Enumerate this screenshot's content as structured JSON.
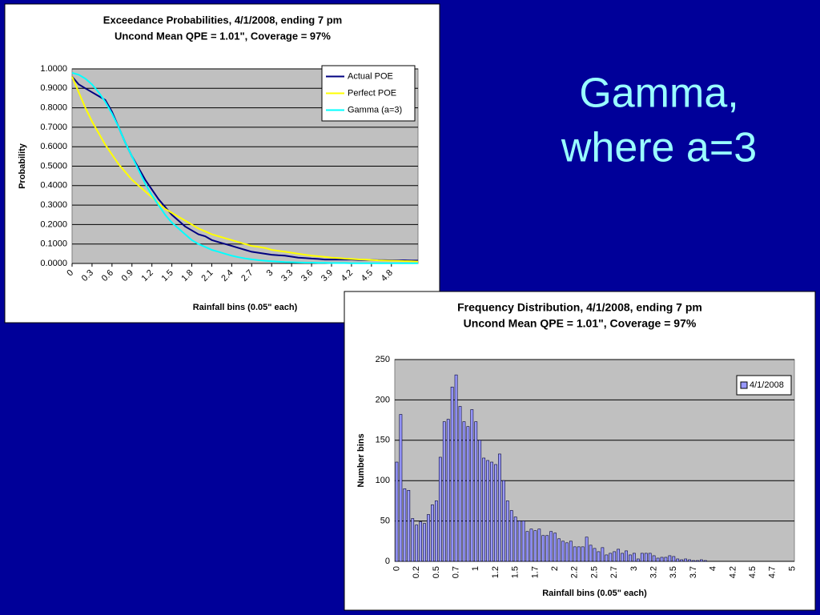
{
  "slide": {
    "title_lines": [
      "Gamma,",
      "where a=3"
    ]
  },
  "chart_data": [
    {
      "type": "line",
      "title": [
        "Exceedance Probabilities, 4/1/2008, ending 7 pm",
        "Uncond Mean QPE = 1.01\", Coverage = 97%"
      ],
      "x_label": "Rainfall bins (0.05\" each)",
      "y_label": "Probability",
      "x": [
        0,
        0.1,
        0.2,
        0.3,
        0.4,
        0.5,
        0.6,
        0.7,
        0.8,
        0.9,
        1.0,
        1.1,
        1.2,
        1.3,
        1.4,
        1.5,
        1.6,
        1.7,
        1.8,
        1.9,
        2.0,
        2.1,
        2.2,
        2.3,
        2.4,
        2.5,
        2.6,
        2.7,
        2.8,
        2.9,
        3.0,
        3.1,
        3.2,
        3.3,
        3.4,
        3.5,
        3.6,
        3.7,
        3.8,
        3.9,
        4.0,
        4.1,
        4.2,
        4.3,
        4.4,
        4.5,
        4.6,
        4.7,
        4.8,
        4.9,
        5.0,
        5.1,
        5.2
      ],
      "xlim": [
        0,
        5.2
      ],
      "xticks": [
        0,
        0.3,
        0.6,
        0.9,
        1.2,
        1.5,
        1.8,
        2.1,
        2.4,
        2.7,
        3,
        3.3,
        3.6,
        3.9,
        4.2,
        4.5,
        4.8
      ],
      "ylim": [
        0,
        1
      ],
      "yticks": [
        {
          "value": 0,
          "label": "0.0000"
        },
        {
          "value": 0.1,
          "label": "0.1000"
        },
        {
          "value": 0.2,
          "label": "0.2000"
        },
        {
          "value": 0.3,
          "label": "0.3000"
        },
        {
          "value": 0.4,
          "label": "0.4000"
        },
        {
          "value": 0.5,
          "label": "0.5000"
        },
        {
          "value": 0.6,
          "label": "0.6000"
        },
        {
          "value": 0.7,
          "label": "0.7000"
        },
        {
          "value": 0.8,
          "label": "0.8000"
        },
        {
          "value": 0.9,
          "label": "0.9000"
        },
        {
          "value": 1,
          "label": "1.0000"
        }
      ],
      "grid": true,
      "legend": "top-right",
      "series": [
        {
          "name": "Actual POE",
          "color": "#000080",
          "values": [
            0.96,
            0.92,
            0.9,
            0.88,
            0.86,
            0.84,
            0.78,
            0.7,
            0.62,
            0.55,
            0.49,
            0.43,
            0.38,
            0.33,
            0.29,
            0.25,
            0.22,
            0.19,
            0.17,
            0.15,
            0.14,
            0.12,
            0.11,
            0.1,
            0.09,
            0.08,
            0.07,
            0.06,
            0.055,
            0.05,
            0.045,
            0.042,
            0.04,
            0.035,
            0.03,
            0.028,
            0.025,
            0.023,
            0.02,
            0.02,
            0.02,
            0.02,
            0.02,
            0.018,
            0.018,
            0.018,
            0.017,
            0.017,
            0.016,
            0.016,
            0.016,
            0.015,
            0.015
          ]
        },
        {
          "name": "Perfect POE",
          "color": "#ffff00",
          "values": [
            0.96,
            0.88,
            0.8,
            0.73,
            0.67,
            0.61,
            0.56,
            0.51,
            0.47,
            0.43,
            0.4,
            0.37,
            0.34,
            0.31,
            0.28,
            0.26,
            0.24,
            0.22,
            0.2,
            0.18,
            0.165,
            0.15,
            0.14,
            0.13,
            0.12,
            0.11,
            0.1,
            0.09,
            0.085,
            0.08,
            0.07,
            0.065,
            0.06,
            0.055,
            0.05,
            0.045,
            0.04,
            0.037,
            0.034,
            0.03,
            0.028,
            0.025,
            0.023,
            0.021,
            0.02,
            0.018,
            0.016,
            0.015,
            0.014,
            0.013,
            0.012,
            0.011,
            0.01
          ]
        },
        {
          "name": "Gamma (a=3)",
          "color": "#00ffff",
          "values": [
            0.98,
            0.97,
            0.95,
            0.92,
            0.88,
            0.83,
            0.77,
            0.7,
            0.62,
            0.55,
            0.48,
            0.41,
            0.35,
            0.3,
            0.25,
            0.21,
            0.18,
            0.15,
            0.12,
            0.1,
            0.085,
            0.07,
            0.06,
            0.05,
            0.04,
            0.032,
            0.026,
            0.021,
            0.017,
            0.014,
            0.011,
            0.009,
            0.007,
            0.006,
            0.005,
            0.004,
            0.004,
            0.003,
            0.003,
            0.002,
            0.002,
            0.002,
            0.001,
            0.001,
            0.001,
            0.001,
            0.001,
            0.001,
            0.001,
            0.001,
            0.001,
            0.001,
            0.001
          ]
        }
      ]
    },
    {
      "type": "bar",
      "title": [
        "Frequency Distribution, 4/1/2008, ending 7 pm",
        "Uncond Mean QPE = 1.01\", Coverage = 97%"
      ],
      "x_label": "Rainfall bins (0.05\" each)",
      "y_label": "Number bins",
      "categories": [
        "0",
        null,
        null,
        null,
        null,
        "0.2",
        null,
        null,
        null,
        null,
        "0.5",
        null,
        null,
        null,
        null,
        "0.7",
        null,
        null,
        null,
        null,
        "1",
        null,
        null,
        null,
        null,
        "1.2",
        null,
        null,
        null,
        null,
        "1.5",
        null,
        null,
        null,
        null,
        "1.7",
        null,
        null,
        null,
        null,
        "2",
        null,
        null,
        null,
        null,
        "2.2",
        null,
        null,
        null,
        null,
        "2.5",
        null,
        null,
        null,
        null,
        "2.7",
        null,
        null,
        null,
        null,
        "3",
        null,
        null,
        null,
        null,
        "3.2",
        null,
        null,
        null,
        null,
        "3.5",
        null,
        null,
        null,
        null,
        "3.7",
        null,
        null,
        null,
        null,
        "4",
        null,
        null,
        null,
        null,
        "4.2",
        null,
        null,
        null,
        null,
        "4.5",
        null,
        null,
        null,
        null,
        "4.7",
        null,
        null,
        null,
        null,
        "5"
      ],
      "ylim": [
        0,
        250
      ],
      "yticks": [
        0,
        50,
        100,
        150,
        200,
        250
      ],
      "grid": true,
      "legend": "top-right",
      "series": [
        {
          "name": "4/1/2008",
          "color": "#9999ff",
          "values": [
            123,
            182,
            90,
            88,
            53,
            45,
            49,
            47,
            58,
            70,
            75,
            129,
            173,
            176,
            216,
            231,
            192,
            173,
            167,
            188,
            173,
            150,
            128,
            125,
            123,
            120,
            133,
            100,
            75,
            63,
            55,
            50,
            50,
            37,
            40,
            38,
            40,
            32,
            32,
            37,
            35,
            28,
            25,
            23,
            25,
            18,
            18,
            18,
            30,
            20,
            16,
            12,
            17,
            8,
            10,
            12,
            15,
            10,
            13,
            8,
            10,
            3,
            10,
            10,
            10,
            7,
            4,
            5,
            5,
            7,
            6,
            3,
            2,
            3,
            2,
            1,
            1,
            2,
            1,
            0,
            0,
            0,
            0,
            0,
            0,
            0,
            0,
            0,
            0,
            0,
            0,
            0,
            0,
            0,
            0,
            0,
            0,
            0,
            0,
            0,
            0
          ]
        }
      ]
    }
  ]
}
